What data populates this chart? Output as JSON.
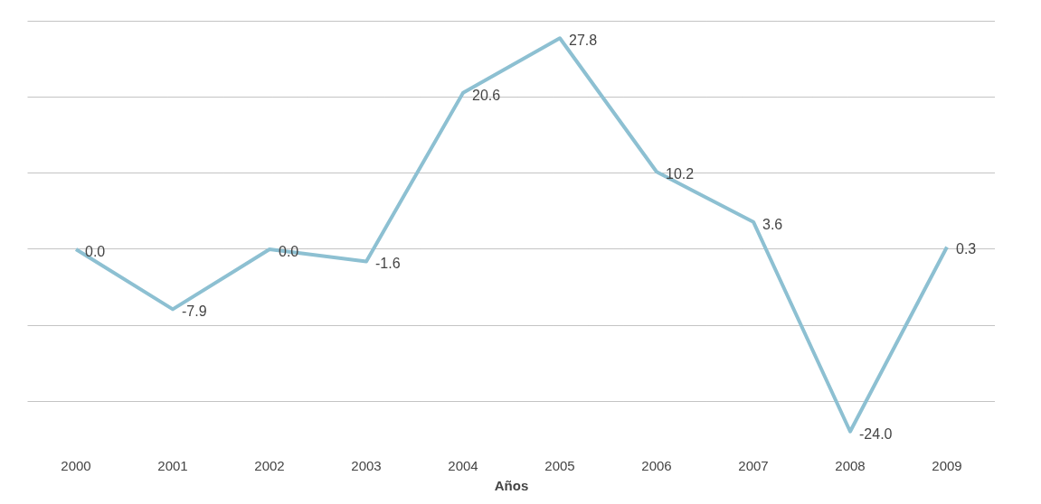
{
  "chart_data": {
    "type": "line",
    "xlabel": "Años",
    "categories": [
      "2000",
      "2001",
      "2002",
      "2003",
      "2004",
      "2005",
      "2006",
      "2007",
      "2008",
      "2009"
    ],
    "series": [
      {
        "color": "#8dc0d2",
        "values": [
          0.0,
          -7.9,
          0.0,
          -1.6,
          20.6,
          27.8,
          10.2,
          3.6,
          -24.0,
          0.3
        ],
        "value_labels": [
          "0.0",
          "-7.9",
          "0.0",
          "-1.6",
          "20.6",
          "27.8",
          "10.2",
          "3.6",
          "-24.0",
          "0.3"
        ]
      }
    ],
    "tick_labels": "x",
    "grid": "y",
    "line_style": "solid"
  }
}
